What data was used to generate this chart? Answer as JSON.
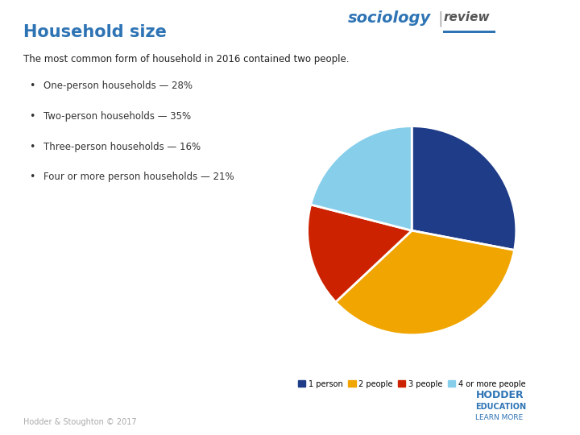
{
  "title": "Household size",
  "title_color": "#2e74b5",
  "subtitle": "The most common form of household in 2016 contained two people.",
  "bullets": [
    "One-person households — 28%",
    "Two-person households — 35%",
    "Three-person households — 16%",
    "Four or more person households — 21%"
  ],
  "pie_values": [
    28,
    35,
    16,
    21
  ],
  "pie_colors": [
    "#1f3c88",
    "#f0a500",
    "#cc2200",
    "#87ceeb"
  ],
  "pie_labels": [
    "1 person",
    "2 people",
    "3 people",
    "4 or more people"
  ],
  "pie_startangle": 90,
  "footer": "Hodder & Stoughton © 2017",
  "background_color": "#ffffff",
  "sociology_color": "#2e74b5",
  "review_color": "#555555"
}
